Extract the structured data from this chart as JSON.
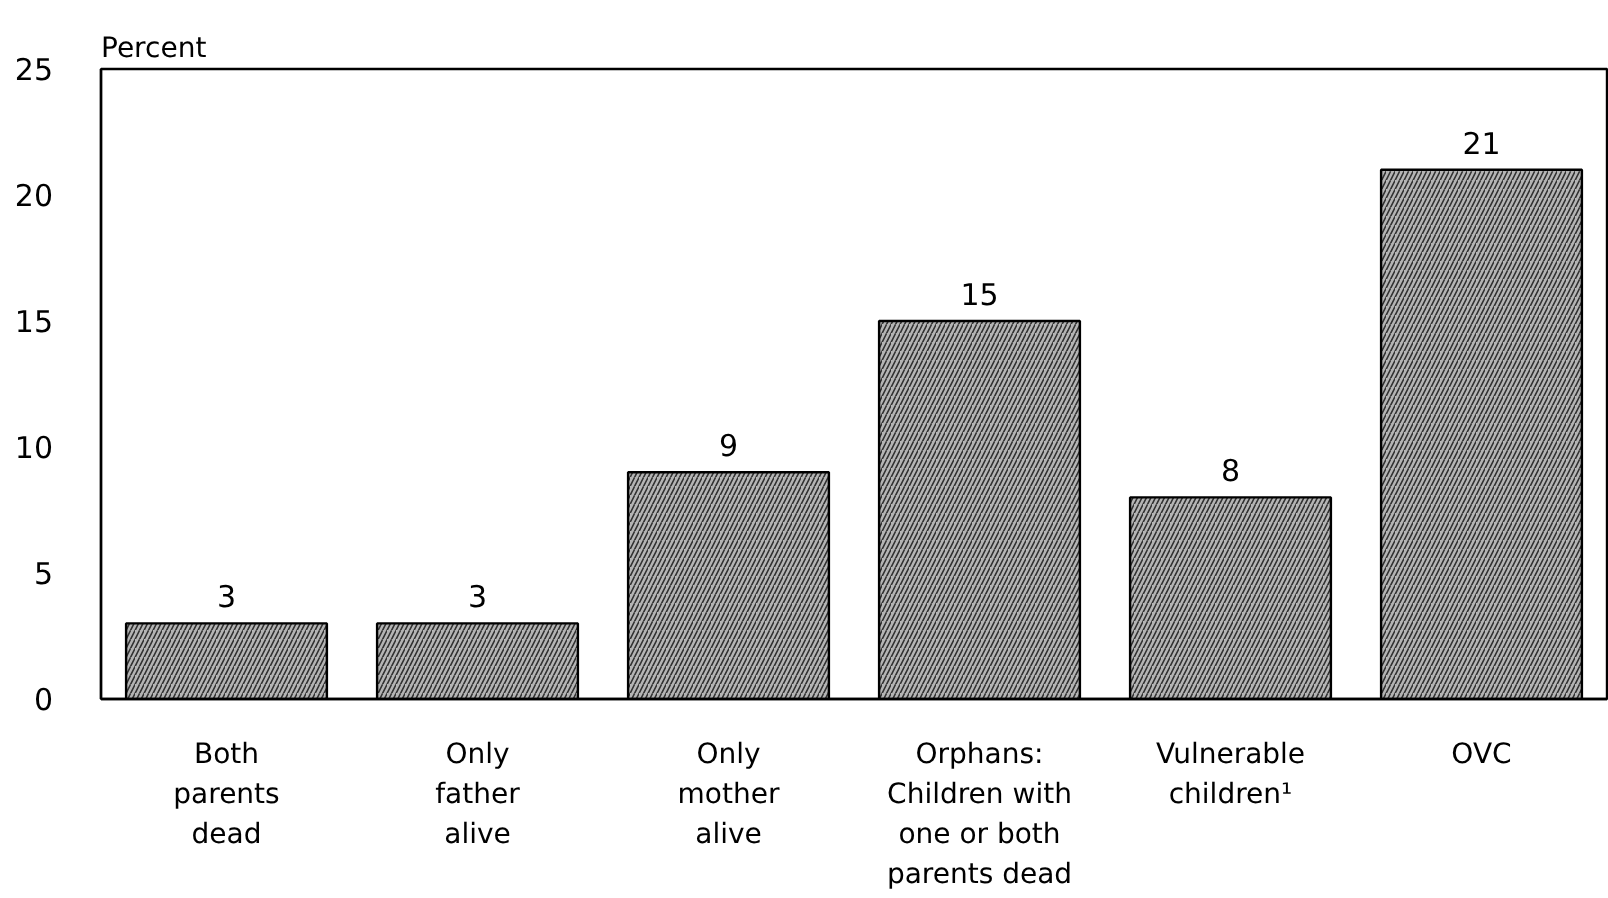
{
  "chart_data": {
    "type": "bar",
    "ylabel": "Percent",
    "categories": [
      "Both\nparents\ndead",
      "Only\nfather\nalive",
      "Only\nmother\nalive",
      "Orphans:\nChildren with\none or both\nparents dead",
      "Vulnerable\nchildren¹",
      "OVC"
    ],
    "values": [
      3,
      3,
      9,
      15,
      8,
      21
    ],
    "color": "#b4b4b4",
    "ylim": [
      0,
      25
    ],
    "yticks": [
      0,
      5,
      10,
      15,
      20,
      25
    ],
    "data_labels": true
  }
}
